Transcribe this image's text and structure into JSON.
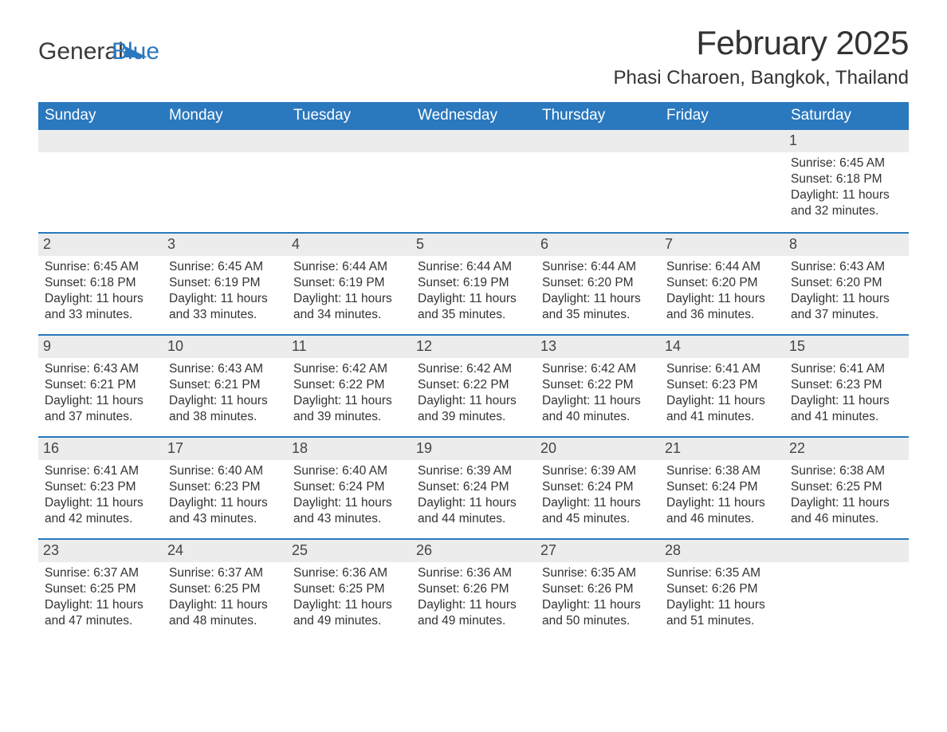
{
  "logo": {
    "word1": "General",
    "word2": "Blue"
  },
  "title": "February 2025",
  "location": "Phasi Charoen, Bangkok, Thailand",
  "colors": {
    "header_bg": "#2a78be",
    "header_text": "#ffffff",
    "daynum_bg": "#ececec",
    "text": "#333333",
    "row_border": "#2a78be",
    "page_bg": "#ffffff"
  },
  "typography": {
    "title_fontsize": 42,
    "location_fontsize": 24,
    "weekday_fontsize": 19,
    "daynum_fontsize": 18,
    "body_fontsize": 15.5,
    "logo_fontsize": 30
  },
  "weekdays": [
    "Sunday",
    "Monday",
    "Tuesday",
    "Wednesday",
    "Thursday",
    "Friday",
    "Saturday"
  ],
  "weeks": [
    [
      {
        "day": "",
        "sunrise": "",
        "sunset": "",
        "daylight": ""
      },
      {
        "day": "",
        "sunrise": "",
        "sunset": "",
        "daylight": ""
      },
      {
        "day": "",
        "sunrise": "",
        "sunset": "",
        "daylight": ""
      },
      {
        "day": "",
        "sunrise": "",
        "sunset": "",
        "daylight": ""
      },
      {
        "day": "",
        "sunrise": "",
        "sunset": "",
        "daylight": ""
      },
      {
        "day": "",
        "sunrise": "",
        "sunset": "",
        "daylight": ""
      },
      {
        "day": "1",
        "sunrise": "Sunrise: 6:45 AM",
        "sunset": "Sunset: 6:18 PM",
        "daylight": "Daylight: 11 hours and 32 minutes."
      }
    ],
    [
      {
        "day": "2",
        "sunrise": "Sunrise: 6:45 AM",
        "sunset": "Sunset: 6:18 PM",
        "daylight": "Daylight: 11 hours and 33 minutes."
      },
      {
        "day": "3",
        "sunrise": "Sunrise: 6:45 AM",
        "sunset": "Sunset: 6:19 PM",
        "daylight": "Daylight: 11 hours and 33 minutes."
      },
      {
        "day": "4",
        "sunrise": "Sunrise: 6:44 AM",
        "sunset": "Sunset: 6:19 PM",
        "daylight": "Daylight: 11 hours and 34 minutes."
      },
      {
        "day": "5",
        "sunrise": "Sunrise: 6:44 AM",
        "sunset": "Sunset: 6:19 PM",
        "daylight": "Daylight: 11 hours and 35 minutes."
      },
      {
        "day": "6",
        "sunrise": "Sunrise: 6:44 AM",
        "sunset": "Sunset: 6:20 PM",
        "daylight": "Daylight: 11 hours and 35 minutes."
      },
      {
        "day": "7",
        "sunrise": "Sunrise: 6:44 AM",
        "sunset": "Sunset: 6:20 PM",
        "daylight": "Daylight: 11 hours and 36 minutes."
      },
      {
        "day": "8",
        "sunrise": "Sunrise: 6:43 AM",
        "sunset": "Sunset: 6:20 PM",
        "daylight": "Daylight: 11 hours and 37 minutes."
      }
    ],
    [
      {
        "day": "9",
        "sunrise": "Sunrise: 6:43 AM",
        "sunset": "Sunset: 6:21 PM",
        "daylight": "Daylight: 11 hours and 37 minutes."
      },
      {
        "day": "10",
        "sunrise": "Sunrise: 6:43 AM",
        "sunset": "Sunset: 6:21 PM",
        "daylight": "Daylight: 11 hours and 38 minutes."
      },
      {
        "day": "11",
        "sunrise": "Sunrise: 6:42 AM",
        "sunset": "Sunset: 6:22 PM",
        "daylight": "Daylight: 11 hours and 39 minutes."
      },
      {
        "day": "12",
        "sunrise": "Sunrise: 6:42 AM",
        "sunset": "Sunset: 6:22 PM",
        "daylight": "Daylight: 11 hours and 39 minutes."
      },
      {
        "day": "13",
        "sunrise": "Sunrise: 6:42 AM",
        "sunset": "Sunset: 6:22 PM",
        "daylight": "Daylight: 11 hours and 40 minutes."
      },
      {
        "day": "14",
        "sunrise": "Sunrise: 6:41 AM",
        "sunset": "Sunset: 6:23 PM",
        "daylight": "Daylight: 11 hours and 41 minutes."
      },
      {
        "day": "15",
        "sunrise": "Sunrise: 6:41 AM",
        "sunset": "Sunset: 6:23 PM",
        "daylight": "Daylight: 11 hours and 41 minutes."
      }
    ],
    [
      {
        "day": "16",
        "sunrise": "Sunrise: 6:41 AM",
        "sunset": "Sunset: 6:23 PM",
        "daylight": "Daylight: 11 hours and 42 minutes."
      },
      {
        "day": "17",
        "sunrise": "Sunrise: 6:40 AM",
        "sunset": "Sunset: 6:23 PM",
        "daylight": "Daylight: 11 hours and 43 minutes."
      },
      {
        "day": "18",
        "sunrise": "Sunrise: 6:40 AM",
        "sunset": "Sunset: 6:24 PM",
        "daylight": "Daylight: 11 hours and 43 minutes."
      },
      {
        "day": "19",
        "sunrise": "Sunrise: 6:39 AM",
        "sunset": "Sunset: 6:24 PM",
        "daylight": "Daylight: 11 hours and 44 minutes."
      },
      {
        "day": "20",
        "sunrise": "Sunrise: 6:39 AM",
        "sunset": "Sunset: 6:24 PM",
        "daylight": "Daylight: 11 hours and 45 minutes."
      },
      {
        "day": "21",
        "sunrise": "Sunrise: 6:38 AM",
        "sunset": "Sunset: 6:24 PM",
        "daylight": "Daylight: 11 hours and 46 minutes."
      },
      {
        "day": "22",
        "sunrise": "Sunrise: 6:38 AM",
        "sunset": "Sunset: 6:25 PM",
        "daylight": "Daylight: 11 hours and 46 minutes."
      }
    ],
    [
      {
        "day": "23",
        "sunrise": "Sunrise: 6:37 AM",
        "sunset": "Sunset: 6:25 PM",
        "daylight": "Daylight: 11 hours and 47 minutes."
      },
      {
        "day": "24",
        "sunrise": "Sunrise: 6:37 AM",
        "sunset": "Sunset: 6:25 PM",
        "daylight": "Daylight: 11 hours and 48 minutes."
      },
      {
        "day": "25",
        "sunrise": "Sunrise: 6:36 AM",
        "sunset": "Sunset: 6:25 PM",
        "daylight": "Daylight: 11 hours and 49 minutes."
      },
      {
        "day": "26",
        "sunrise": "Sunrise: 6:36 AM",
        "sunset": "Sunset: 6:26 PM",
        "daylight": "Daylight: 11 hours and 49 minutes."
      },
      {
        "day": "27",
        "sunrise": "Sunrise: 6:35 AM",
        "sunset": "Sunset: 6:26 PM",
        "daylight": "Daylight: 11 hours and 50 minutes."
      },
      {
        "day": "28",
        "sunrise": "Sunrise: 6:35 AM",
        "sunset": "Sunset: 6:26 PM",
        "daylight": "Daylight: 11 hours and 51 minutes."
      },
      {
        "day": "",
        "sunrise": "",
        "sunset": "",
        "daylight": ""
      }
    ]
  ]
}
